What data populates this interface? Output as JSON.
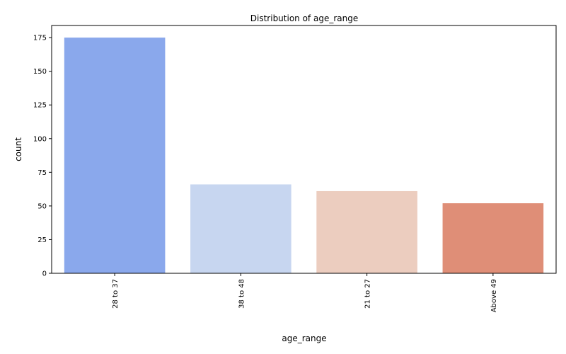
{
  "chart_data": {
    "type": "bar",
    "title": "Distribution of age_range",
    "xlabel": "age_range",
    "ylabel": "count",
    "categories": [
      "28 to 37",
      "38 to 48",
      "21 to 27",
      "Above 49"
    ],
    "values": [
      175,
      66,
      61,
      52
    ],
    "colors": [
      "#8aa8ec",
      "#c7d6f0",
      "#eccdbf",
      "#df8e77"
    ],
    "ylim": [
      0,
      184
    ],
    "yticks": [
      0,
      25,
      50,
      75,
      100,
      125,
      150,
      175
    ],
    "grid": false,
    "legend": "none"
  }
}
